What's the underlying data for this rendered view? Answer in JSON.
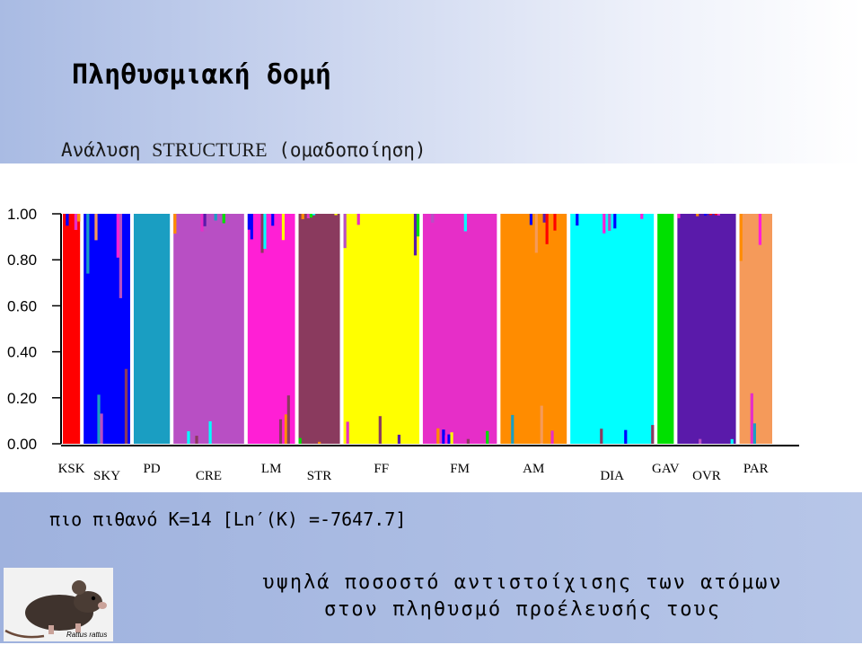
{
  "title": "Πληθυσμιακή δομή",
  "subtitle_prefix": "Ανάλυση",
  "subtitle_method": "STRUCTURE",
  "subtitle_suffix": "(ομαδοποίηση)",
  "k_result": "πιο πιθανό K=14 [Ln′(K) =-7647.7]",
  "conclusion_line1": "υψηλά ποσοστό αντιστοίχισης των ατόμων",
  "conclusion_line2": "στον πληθυσμό προέλευσής τους",
  "image_caption": "Rattus rattus",
  "chart_data": {
    "type": "bar",
    "stacked": true,
    "ylim": [
      0,
      1
    ],
    "yticks": [
      "0.00",
      "0.20",
      "0.40",
      "0.60",
      "0.80",
      "1.00"
    ],
    "grid": false,
    "categories": [
      "KSK",
      "SKY",
      "PD",
      "CRE",
      "LM",
      "STR",
      "FF",
      "FM",
      "AM",
      "DIA",
      "GAV",
      "OVR",
      "PAR"
    ],
    "populations": [
      {
        "label": "KSK",
        "color": "#ff0000",
        "weight": 20,
        "main": 0.95
      },
      {
        "label": "SKY",
        "color": "#0000ff",
        "weight": 54,
        "main": 0.85
      },
      {
        "label": "PD",
        "color": "#1a9ec2",
        "weight": 42,
        "main": 1.0
      },
      {
        "label": "CRE",
        "color": "#b84fc4",
        "weight": 82,
        "main": 0.95
      },
      {
        "label": "LM",
        "color": "#ff1fd5",
        "weight": 55,
        "main": 0.92
      },
      {
        "label": "STR",
        "color": "#8a3a5e",
        "weight": 48,
        "main": 0.99
      },
      {
        "label": "FF",
        "color": "#ffff00",
        "weight": 88,
        "main": 0.93
      },
      {
        "label": "FM",
        "color": "#e62ec8",
        "weight": 86,
        "main": 0.97
      },
      {
        "label": "AM",
        "color": "#ff8c00",
        "weight": 77,
        "main": 0.93
      },
      {
        "label": "DIA",
        "color": "#00ffff",
        "weight": 97,
        "main": 0.96
      },
      {
        "label": "GAV",
        "color": "#00e000",
        "weight": 19,
        "main": 1.0
      },
      {
        "label": "OVR",
        "color": "#5a1aaa",
        "weight": 68,
        "main": 0.99
      },
      {
        "label": "PAR",
        "color": "#f59a5a",
        "weight": 38,
        "main": 0.9
      }
    ]
  }
}
